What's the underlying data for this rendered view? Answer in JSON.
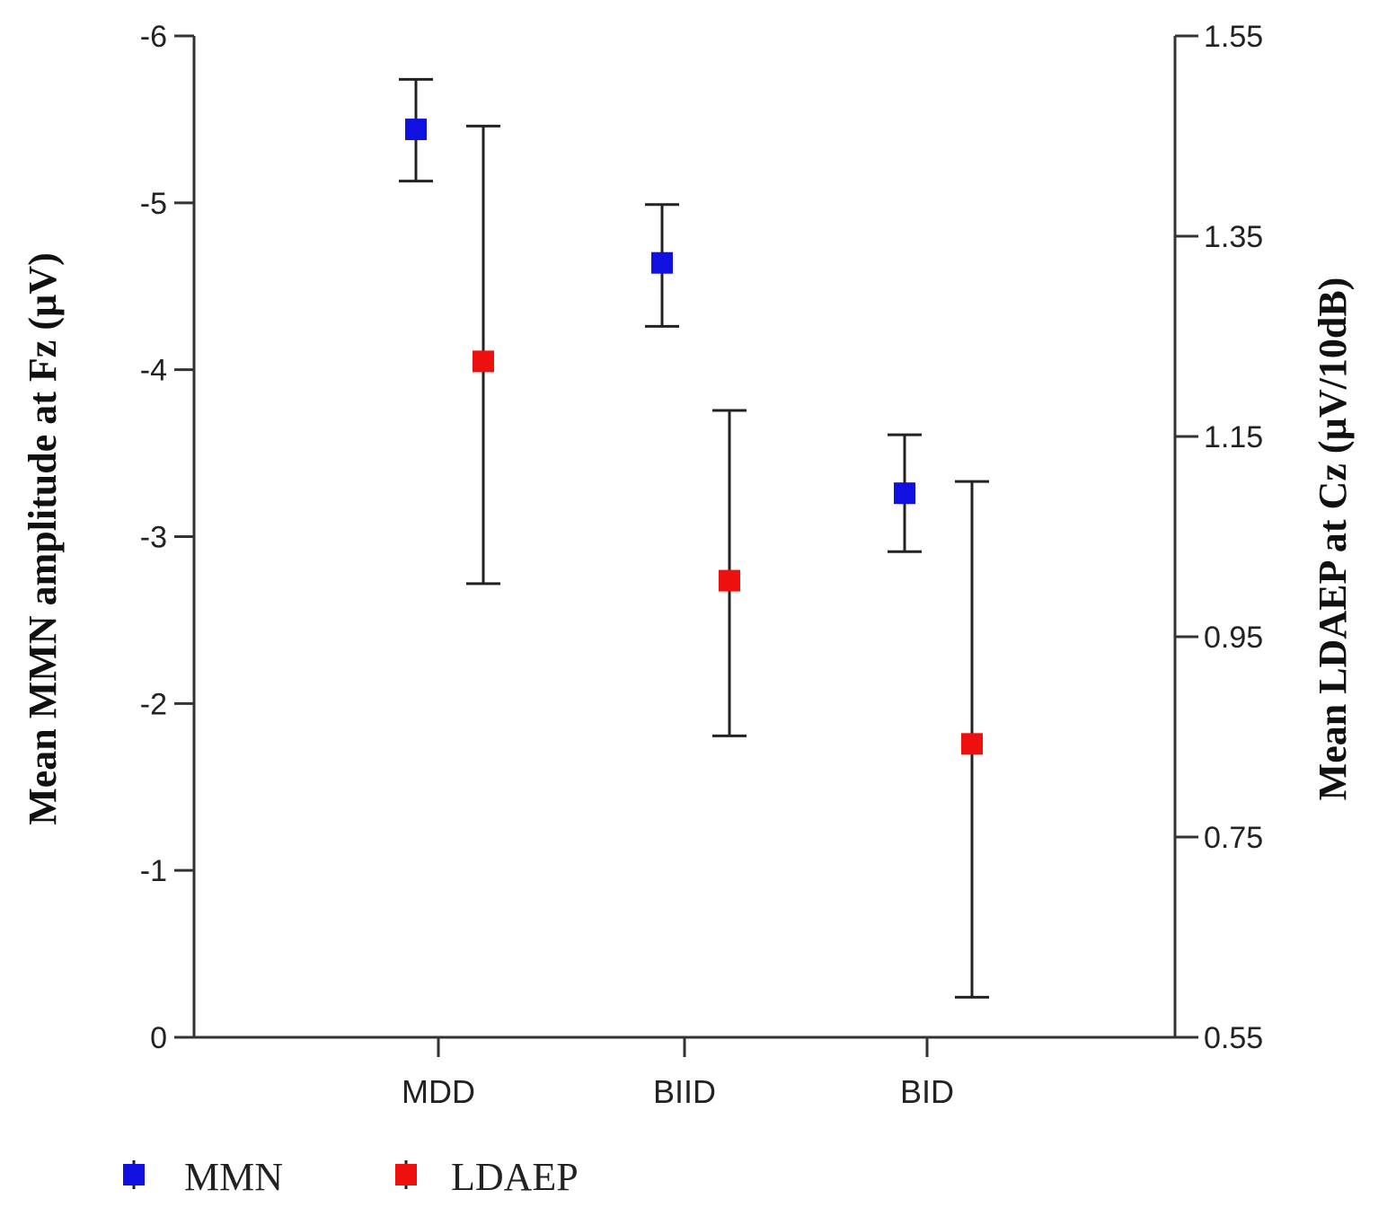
{
  "chart_data": {
    "type": "scatter",
    "categories": [
      "MDD",
      "BIID",
      "BID"
    ],
    "left_axis": {
      "label": "Mean MMN amplitude at Fz (µV)",
      "ylim": [
        0,
        -6
      ],
      "ticks": [
        "0",
        "-1",
        "-2",
        "-3",
        "-4",
        "-5",
        "-6"
      ],
      "tick_values": [
        0,
        -1,
        -2,
        -3,
        -4,
        -5,
        -6
      ]
    },
    "right_axis": {
      "label": "Mean LDAEP at Cz (µV/10dB)",
      "ylim": [
        0.55,
        1.55
      ],
      "ticks": [
        "0.55",
        "0.75",
        "0.95",
        "1.15",
        "1.35",
        "1.55"
      ],
      "tick_values": [
        0.55,
        0.75,
        0.95,
        1.15,
        1.35,
        1.55
      ]
    },
    "series": [
      {
        "name": "MMN",
        "axis": "left",
        "color": "#1010e0",
        "values": [
          -5.44,
          -4.64,
          -3.26
        ],
        "error_low": [
          -5.13,
          -4.26,
          -2.91
        ],
        "error_high": [
          -5.74,
          -4.99,
          -3.61
        ]
      },
      {
        "name": "LDAEP",
        "axis": "right",
        "color": "#ee0f0f",
        "values": [
          1.225,
          1.006,
          0.843
        ],
        "error_low": [
          1.003,
          0.851,
          0.59
        ],
        "error_high": [
          1.46,
          1.176,
          1.105
        ]
      }
    ],
    "legend": {
      "position": "bottom-left",
      "items": [
        {
          "label": "MMN",
          "color": "#1010e0"
        },
        {
          "label": "LDAEP",
          "color": "#ee0f0f"
        }
      ]
    }
  }
}
